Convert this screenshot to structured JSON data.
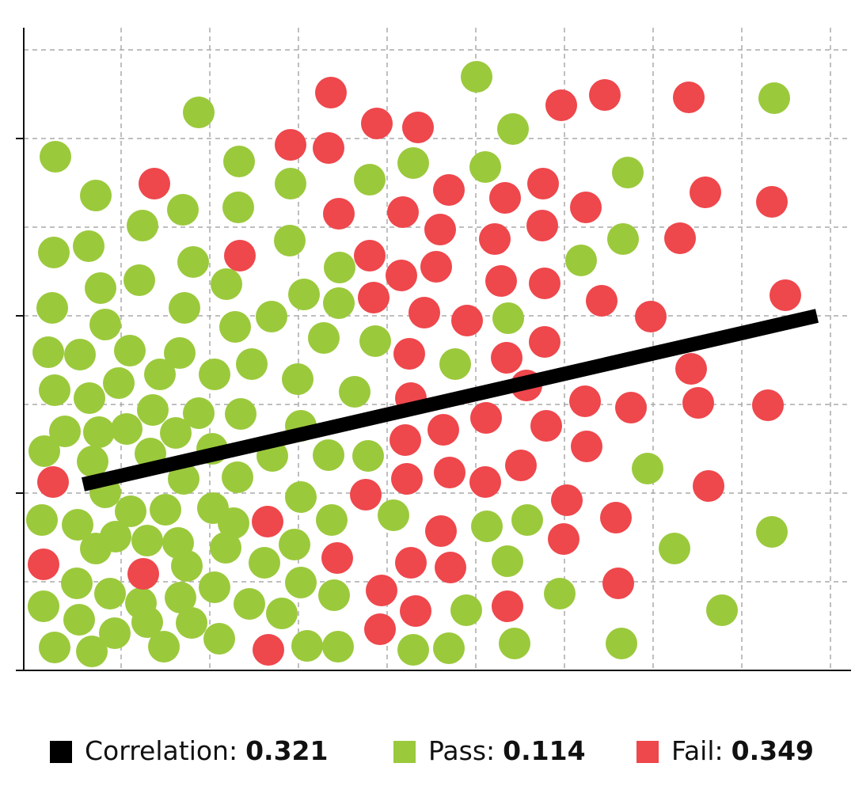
{
  "chart_data": {
    "type": "scatter",
    "xlim": [
      0,
      1050
    ],
    "ylim": [
      0,
      812
    ],
    "xticks": [
      123,
      235,
      347,
      459,
      571,
      683,
      795,
      907,
      1019
    ],
    "yticks": [
      112,
      224,
      336,
      448,
      560,
      672,
      784
    ],
    "grid": true,
    "legend": "bottom",
    "trend": {
      "name": "Correlation:",
      "value": 0.321,
      "color": "#000000",
      "x": [
        75,
        1002
      ],
      "y": [
        235,
        448
      ]
    },
    "series": [
      {
        "name": "Pass:",
        "value": 0.114,
        "color": "#9bc93c",
        "x": [
          572,
          948,
          221,
          618,
          40,
          272,
          492,
          337,
          437,
          583,
          763,
          91,
          201,
          271,
          150,
          757,
          336,
          38,
          82,
          214,
          399,
          704,
          146,
          97,
          256,
          354,
          398,
          36,
          203,
          313,
          612,
          103,
          267,
          379,
          444,
          31,
          71,
          134,
          197,
          288,
          545,
          39,
          83,
          120,
          172,
          241,
          346,
          418,
          52,
          95,
          130,
          163,
          192,
          221,
          274,
          350,
          26,
          87,
          160,
          238,
          314,
          385,
          435,
          103,
          202,
          270,
          788,
          23,
          68,
          135,
          179,
          239,
          265,
          350,
          389,
          467,
          585,
          636,
          91,
          116,
          156,
          195,
          255,
          342,
          206,
          304,
          611,
          822,
          945,
          67,
          109,
          148,
          198,
          241,
          350,
          392,
          285,
          326,
          559,
          677,
          882,
          25,
          70,
          115,
          156,
          212,
          247,
          39,
          86,
          177,
          358,
          397,
          492,
          537,
          620,
          755
        ],
        "y": [
          750,
          723,
          705,
          684,
          649,
          643,
          641,
          615,
          620,
          636,
          629,
          600,
          582,
          585,
          562,
          545,
          543,
          528,
          536,
          516,
          509,
          518,
          493,
          483,
          488,
          475,
          464,
          458,
          458,
          447,
          445,
          437,
          434,
          420,
          416,
          402,
          399,
          404,
          401,
          387,
          387,
          354,
          344,
          363,
          374,
          374,
          368,
          352,
          302,
          301,
          305,
          329,
          300,
          325,
          324,
          309,
          277,
          264,
          274,
          280,
          271,
          272,
          271,
          225,
          242,
          244,
          255,
          190,
          184,
          201,
          203,
          205,
          186,
          219,
          190,
          196,
          182,
          190,
          154,
          169,
          164,
          161,
          155,
          159,
          132,
          136,
          138,
          154,
          175,
          110,
          97,
          85,
          92,
          105,
          111,
          95,
          84,
          72,
          76,
          97,
          76,
          81,
          64,
          47,
          61,
          60,
          40,
          29,
          24,
          30,
          31,
          30,
          26,
          28,
          34,
          34
        ]
      },
      {
        "name": "Fail:",
        "value": 0.349,
        "color": "#ee474c",
        "x": [
          388,
          734,
          840,
          679,
          446,
          498,
          337,
          385,
          165,
          656,
          537,
          608,
          861,
          945,
          710,
          398,
          479,
          655,
          526,
          595,
          829,
          273,
          437,
          521,
          477,
          603,
          658,
          442,
          730,
          962,
          506,
          560,
          792,
          658,
          487,
          610,
          843,
          635,
          489,
          709,
          767,
          852,
          940,
          584,
          660,
          530,
          482,
          711,
          37,
          538,
          628,
          484,
          583,
          865,
          432,
          686,
          308,
          748,
          527,
          682,
          25,
          151,
          396,
          489,
          539,
          751,
          452,
          611,
          495,
          450,
          309
        ],
        "y": [
          730,
          727,
          724,
          714,
          691,
          686,
          664,
          660,
          615,
          615,
          607,
          597,
          604,
          592,
          585,
          577,
          579,
          562,
          557,
          545,
          546,
          524,
          524,
          510,
          499,
          492,
          489,
          471,
          467,
          474,
          452,
          442,
          447,
          415,
          400,
          395,
          381,
          360,
          344,
          340,
          332,
          338,
          335,
          319,
          309,
          304,
          291,
          283,
          238,
          250,
          259,
          242,
          238,
          233,
          222,
          215,
          188,
          193,
          176,
          166,
          134,
          122,
          142,
          136,
          130,
          110,
          101,
          81,
          75,
          52,
          26
        ]
      }
    ]
  }
}
